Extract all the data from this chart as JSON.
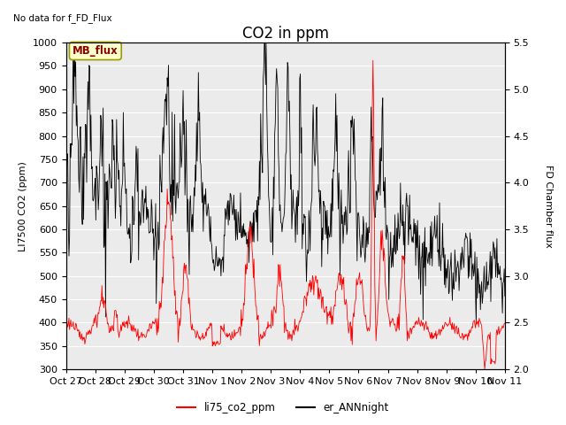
{
  "title": "CO2 in ppm",
  "top_left_text": "No data for f_FD_Flux",
  "annotation_text": "MB_flux",
  "ylabel_left": "LI7500 CO2 (ppm)",
  "ylabel_right": "FD Chamber flux",
  "ylim_left": [
    300,
    1000
  ],
  "ylim_right": [
    2.0,
    5.5
  ],
  "xtick_labels": [
    "Oct 27",
    "Oct 28",
    "Oct 29",
    "Oct 30",
    "Oct 31",
    "Nov 1",
    "Nov 2",
    "Nov 3",
    "Nov 4",
    "Nov 5",
    "Nov 6",
    "Nov 7",
    "Nov 8",
    "Nov 9",
    "Nov 10",
    "Nov 11"
  ],
  "legend_labels": [
    "li75_co2_ppm",
    "er_ANNnight"
  ],
  "line_colors": [
    "red",
    "black"
  ],
  "plot_bg_color": "#ebebeb",
  "grid_color": "#ffffff",
  "title_fontsize": 12,
  "label_fontsize": 8,
  "tick_fontsize": 8
}
